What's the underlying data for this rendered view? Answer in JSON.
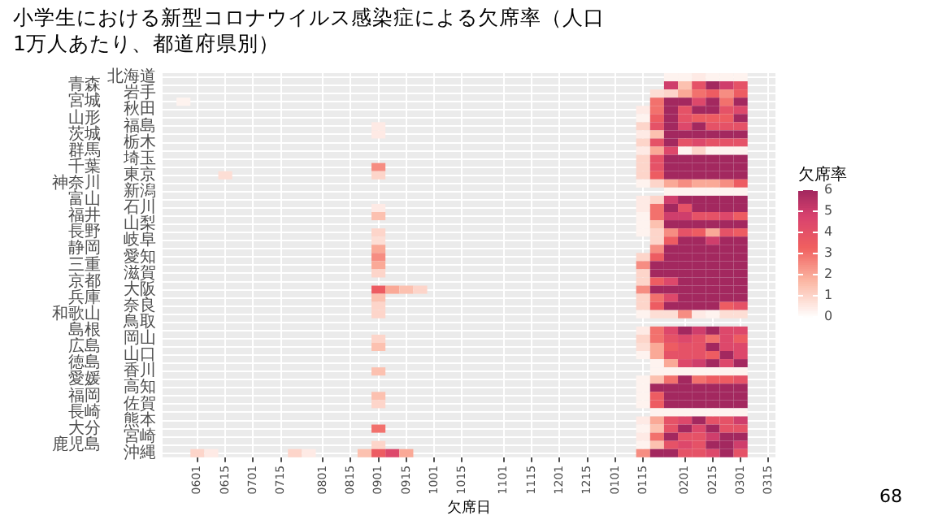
{
  "chart_data": {
    "type": "heatmap",
    "title": "小学生における新型コロナウイルス感染症による欠席率（人口1万人あたり、都道府県別）",
    "xlabel": "欠席日",
    "clabel": "欠席率",
    "clim": [
      0,
      6
    ],
    "cticks": [
      0,
      1,
      2,
      3,
      4,
      5,
      6
    ],
    "grid": true,
    "annotations": [
      "68"
    ],
    "categories": [
      null,
      null,
      "0601",
      null,
      "0615",
      null,
      "0701",
      null,
      "0715",
      null,
      null,
      "0801",
      null,
      "0815",
      null,
      "0901",
      null,
      "0915",
      null,
      "1001",
      null,
      "1015",
      null,
      null,
      "1101",
      null,
      "1115",
      null,
      "1201",
      null,
      "1215",
      null,
      "0101",
      null,
      "0115",
      null,
      null,
      "0201",
      null,
      "0215",
      null,
      "0301",
      null,
      "0315"
    ],
    "y_categories": [
      "北海道",
      "青森",
      "岩手",
      "宮城",
      "秋田",
      "山形",
      "福島",
      "茨城",
      "栃木",
      "群馬",
      "埼玉",
      "千葉",
      "東京",
      "神奈川",
      "新潟",
      "富山",
      "石川",
      "福井",
      "山梨",
      "長野",
      "岐阜",
      "静岡",
      "愛知",
      "三重",
      "滋賀",
      "京都",
      "大阪",
      "兵庫",
      "奈良",
      "和歌山",
      "鳥取",
      "島根",
      "岡山",
      "広島",
      "山口",
      "徳島",
      "香川",
      "愛媛",
      "高知",
      "福岡",
      "佐賀",
      "長崎",
      "熊本",
      "大分",
      "宮崎",
      "鹿児島",
      "沖縄"
    ],
    "cells": [
      [
        null,
        null,
        null,
        null,
        null,
        null,
        null,
        null,
        null,
        null,
        null,
        null,
        null,
        null,
        null,
        null,
        null,
        null,
        null,
        null,
        null,
        null,
        null,
        null,
        null,
        null,
        null,
        null,
        null,
        null,
        null,
        null,
        null,
        null,
        null,
        null,
        0.3,
        0.3,
        0.5,
        0.3,
        0.3,
        0.3,
        null,
        null
      ],
      [
        null,
        null,
        null,
        null,
        null,
        null,
        null,
        null,
        null,
        null,
        null,
        null,
        null,
        null,
        null,
        null,
        null,
        null,
        null,
        null,
        null,
        null,
        null,
        null,
        null,
        null,
        null,
        null,
        null,
        null,
        null,
        null,
        null,
        null,
        null,
        null,
        5,
        1.5,
        4,
        6,
        5,
        4,
        null,
        null
      ],
      [
        null,
        null,
        null,
        null,
        null,
        null,
        null,
        null,
        null,
        null,
        null,
        null,
        null,
        null,
        null,
        null,
        null,
        null,
        null,
        null,
        null,
        null,
        null,
        null,
        null,
        null,
        null,
        null,
        null,
        null,
        null,
        null,
        null,
        null,
        null,
        0.8,
        1,
        2,
        3,
        3.5,
        2.5,
        3.5,
        null,
        null
      ],
      [
        null,
        0.3,
        null,
        null,
        null,
        null,
        null,
        null,
        null,
        null,
        null,
        null,
        null,
        null,
        null,
        null,
        null,
        null,
        null,
        null,
        null,
        null,
        null,
        null,
        null,
        null,
        null,
        null,
        null,
        null,
        null,
        null,
        null,
        null,
        null,
        3,
        6,
        6,
        4.5,
        6,
        3,
        6,
        null,
        null
      ],
      [
        null,
        null,
        null,
        null,
        null,
        null,
        null,
        null,
        null,
        null,
        null,
        null,
        null,
        null,
        null,
        null,
        null,
        null,
        null,
        null,
        null,
        null,
        null,
        null,
        null,
        null,
        null,
        null,
        null,
        null,
        null,
        null,
        null,
        null,
        0.5,
        3,
        6,
        4,
        6,
        6,
        4,
        4.5,
        null,
        null
      ],
      [
        null,
        null,
        null,
        null,
        null,
        null,
        null,
        null,
        null,
        null,
        null,
        null,
        null,
        null,
        null,
        null,
        null,
        null,
        null,
        null,
        null,
        null,
        null,
        null,
        null,
        null,
        null,
        null,
        null,
        null,
        null,
        null,
        null,
        null,
        0.3,
        3.5,
        6,
        4,
        3.5,
        3.5,
        3.5,
        6,
        null,
        null
      ],
      [
        null,
        null,
        null,
        null,
        null,
        null,
        null,
        null,
        null,
        null,
        null,
        null,
        null,
        null,
        null,
        0.5,
        null,
        null,
        null,
        null,
        null,
        null,
        null,
        null,
        null,
        null,
        null,
        null,
        null,
        null,
        null,
        null,
        null,
        null,
        1,
        4,
        6,
        4.5,
        6,
        4,
        4,
        4,
        null,
        null
      ],
      [
        null,
        null,
        null,
        null,
        null,
        null,
        null,
        null,
        null,
        null,
        null,
        null,
        null,
        null,
        null,
        0.5,
        null,
        null,
        null,
        null,
        null,
        null,
        null,
        null,
        null,
        null,
        null,
        null,
        null,
        null,
        null,
        null,
        null,
        null,
        0.5,
        1.5,
        6,
        6,
        6,
        6,
        6,
        6,
        null,
        null
      ],
      [
        null,
        null,
        null,
        null,
        null,
        null,
        null,
        null,
        null,
        null,
        null,
        null,
        null,
        null,
        null,
        null,
        null,
        null,
        null,
        null,
        null,
        null,
        null,
        null,
        null,
        null,
        null,
        null,
        null,
        null,
        null,
        null,
        null,
        null,
        1,
        4,
        6,
        4,
        4.5,
        4,
        4,
        4,
        null,
        null
      ],
      [
        null,
        null,
        null,
        null,
        null,
        null,
        null,
        null,
        null,
        null,
        null,
        null,
        null,
        null,
        null,
        null,
        null,
        null,
        null,
        null,
        null,
        null,
        null,
        null,
        null,
        null,
        null,
        null,
        null,
        null,
        null,
        null,
        null,
        null,
        0.5,
        2,
        4.5,
        0.3,
        1,
        0.3,
        0.3,
        0.3,
        null,
        null
      ],
      [
        null,
        null,
        null,
        null,
        null,
        null,
        null,
        null,
        null,
        null,
        null,
        null,
        null,
        null,
        null,
        null,
        null,
        null,
        null,
        null,
        null,
        null,
        null,
        null,
        null,
        null,
        null,
        null,
        null,
        null,
        null,
        null,
        null,
        null,
        1,
        4,
        6,
        6,
        6,
        6,
        6,
        6,
        null,
        null
      ],
      [
        null,
        null,
        null,
        null,
        null,
        null,
        null,
        null,
        null,
        null,
        null,
        null,
        null,
        null,
        null,
        2.5,
        null,
        null,
        null,
        null,
        null,
        null,
        null,
        null,
        null,
        null,
        null,
        null,
        null,
        null,
        null,
        null,
        null,
        null,
        1,
        4,
        6,
        6,
        6,
        6,
        6,
        6,
        null,
        null
      ],
      [
        null,
        null,
        null,
        null,
        0.8,
        null,
        null,
        null,
        null,
        null,
        null,
        null,
        null,
        null,
        null,
        1,
        null,
        null,
        null,
        null,
        null,
        null,
        null,
        null,
        null,
        null,
        null,
        null,
        null,
        null,
        null,
        null,
        null,
        null,
        1,
        3.5,
        6,
        6,
        6,
        6,
        6,
        6,
        null,
        null
      ],
      [
        null,
        null,
        null,
        null,
        null,
        null,
        null,
        null,
        null,
        null,
        null,
        null,
        null,
        null,
        null,
        null,
        null,
        null,
        null,
        null,
        null,
        null,
        null,
        null,
        null,
        null,
        null,
        null,
        null,
        null,
        null,
        null,
        null,
        null,
        0.3,
        1,
        2,
        2.5,
        2,
        2,
        2.5,
        3.5,
        null,
        null
      ],
      [
        null,
        null,
        null,
        null,
        null,
        null,
        null,
        null,
        null,
        null,
        null,
        null,
        null,
        null,
        null,
        null,
        null,
        null,
        null,
        null,
        null,
        null,
        null,
        null,
        null,
        null,
        null,
        null,
        null,
        null,
        null,
        null,
        null,
        null,
        null,
        null,
        0.3,
        0.3,
        0.3,
        0.3,
        0.3,
        0.3,
        null,
        null
      ],
      [
        null,
        null,
        null,
        null,
        null,
        null,
        null,
        null,
        null,
        null,
        null,
        null,
        null,
        null,
        null,
        null,
        null,
        null,
        null,
        null,
        null,
        null,
        null,
        null,
        null,
        null,
        null,
        null,
        null,
        null,
        null,
        null,
        null,
        null,
        0.5,
        1,
        5,
        6,
        6,
        6,
        6,
        6,
        null,
        null
      ],
      [
        null,
        null,
        null,
        null,
        null,
        null,
        null,
        null,
        null,
        null,
        null,
        null,
        null,
        null,
        null,
        0.5,
        null,
        null,
        null,
        null,
        null,
        null,
        null,
        null,
        null,
        null,
        null,
        null,
        null,
        null,
        null,
        null,
        null,
        null,
        0.5,
        3,
        6,
        4,
        6,
        6,
        6,
        6,
        null,
        null
      ],
      [
        null,
        null,
        null,
        null,
        null,
        null,
        null,
        null,
        null,
        null,
        null,
        null,
        null,
        null,
        null,
        1.5,
        null,
        null,
        null,
        null,
        null,
        null,
        null,
        null,
        null,
        null,
        null,
        null,
        null,
        null,
        null,
        null,
        null,
        null,
        0.3,
        3,
        5,
        5,
        4,
        4,
        4.5,
        3.5,
        null,
        null
      ],
      [
        null,
        null,
        null,
        null,
        null,
        null,
        null,
        null,
        null,
        null,
        null,
        null,
        null,
        null,
        null,
        null,
        null,
        null,
        null,
        null,
        null,
        null,
        null,
        null,
        null,
        null,
        null,
        null,
        null,
        null,
        null,
        null,
        null,
        null,
        0.3,
        1.5,
        6,
        6,
        6,
        6,
        6,
        6,
        null,
        null
      ],
      [
        null,
        null,
        null,
        null,
        null,
        null,
        null,
        null,
        null,
        null,
        null,
        null,
        null,
        null,
        null,
        1,
        null,
        null,
        null,
        null,
        null,
        null,
        null,
        null,
        null,
        null,
        null,
        null,
        null,
        null,
        null,
        null,
        null,
        null,
        0.3,
        1,
        2.5,
        4,
        3.5,
        2,
        4,
        3.5,
        null,
        null
      ],
      [
        null,
        null,
        null,
        null,
        null,
        null,
        null,
        null,
        null,
        null,
        null,
        null,
        null,
        null,
        null,
        0.8,
        null,
        null,
        null,
        null,
        null,
        null,
        null,
        null,
        null,
        null,
        null,
        null,
        null,
        null,
        null,
        null,
        null,
        null,
        null,
        1,
        3.5,
        6,
        6,
        5,
        6,
        6,
        null,
        null
      ],
      [
        null,
        null,
        null,
        null,
        null,
        null,
        null,
        null,
        null,
        null,
        null,
        null,
        null,
        null,
        null,
        2,
        null,
        null,
        null,
        null,
        null,
        null,
        null,
        null,
        null,
        null,
        null,
        null,
        null,
        null,
        null,
        null,
        null,
        null,
        null,
        2.5,
        6,
        6,
        6,
        6,
        6,
        6,
        null,
        null
      ],
      [
        null,
        null,
        null,
        null,
        null,
        null,
        null,
        null,
        null,
        null,
        null,
        null,
        null,
        null,
        null,
        2.5,
        null,
        null,
        null,
        null,
        null,
        null,
        null,
        null,
        null,
        null,
        null,
        null,
        null,
        null,
        null,
        null,
        null,
        null,
        1,
        3.5,
        6,
        6,
        6,
        6,
        6,
        6,
        null,
        null
      ],
      [
        null,
        null,
        null,
        null,
        null,
        null,
        null,
        null,
        null,
        null,
        null,
        null,
        null,
        null,
        null,
        2,
        null,
        null,
        null,
        null,
        null,
        null,
        null,
        null,
        null,
        null,
        null,
        null,
        null,
        null,
        null,
        null,
        null,
        null,
        2.5,
        6,
        6,
        6,
        6,
        6,
        6,
        6,
        null,
        null
      ],
      [
        null,
        null,
        null,
        null,
        null,
        null,
        null,
        null,
        null,
        null,
        null,
        null,
        null,
        null,
        null,
        1,
        null,
        null,
        null,
        null,
        null,
        null,
        null,
        null,
        null,
        null,
        null,
        null,
        null,
        null,
        null,
        null,
        null,
        null,
        1,
        6,
        6,
        6,
        6,
        6,
        6,
        6,
        null,
        null
      ],
      [
        null,
        null,
        null,
        null,
        null,
        null,
        null,
        null,
        null,
        null,
        null,
        null,
        null,
        null,
        null,
        null,
        null,
        null,
        null,
        null,
        null,
        null,
        null,
        null,
        null,
        null,
        null,
        null,
        null,
        null,
        null,
        null,
        null,
        null,
        1,
        3.5,
        4.5,
        6,
        6,
        6,
        6,
        6,
        null,
        null
      ],
      [
        null,
        null,
        null,
        null,
        null,
        null,
        null,
        null,
        null,
        null,
        null,
        null,
        null,
        null,
        null,
        3.5,
        2,
        1.5,
        1,
        null,
        null,
        null,
        null,
        null,
        null,
        null,
        null,
        null,
        null,
        null,
        null,
        null,
        null,
        null,
        2.5,
        6,
        6,
        6,
        6,
        6,
        6,
        6,
        null,
        null
      ],
      [
        null,
        null,
        null,
        null,
        null,
        null,
        null,
        null,
        null,
        null,
        null,
        null,
        null,
        null,
        null,
        1.5,
        null,
        null,
        null,
        null,
        null,
        null,
        null,
        null,
        null,
        null,
        null,
        null,
        null,
        null,
        null,
        null,
        null,
        null,
        1,
        3,
        4.5,
        6,
        6,
        6,
        6,
        6,
        null,
        null
      ],
      [
        null,
        null,
        null,
        null,
        null,
        null,
        null,
        null,
        null,
        null,
        null,
        null,
        null,
        null,
        null,
        1,
        null,
        null,
        null,
        null,
        null,
        null,
        null,
        null,
        null,
        null,
        null,
        null,
        null,
        null,
        null,
        null,
        null,
        null,
        1,
        3.5,
        6,
        6,
        6,
        6,
        3.5,
        4,
        null,
        null
      ],
      [
        null,
        null,
        null,
        null,
        null,
        null,
        null,
        null,
        null,
        null,
        null,
        null,
        null,
        null,
        null,
        1,
        null,
        null,
        null,
        null,
        null,
        null,
        null,
        null,
        null,
        null,
        null,
        null,
        null,
        null,
        null,
        null,
        null,
        null,
        0.3,
        0.8,
        0.8,
        2.5,
        0.5,
        0.3,
        0.8,
        0.8,
        null,
        null
      ],
      [
        null,
        null,
        null,
        null,
        null,
        null,
        null,
        null,
        null,
        null,
        null,
        null,
        null,
        null,
        null,
        null,
        null,
        null,
        null,
        null,
        null,
        null,
        null,
        null,
        null,
        null,
        null,
        null,
        null,
        null,
        null,
        null,
        null,
        null,
        null,
        null,
        null,
        null,
        null,
        null,
        null,
        null,
        null,
        null
      ],
      [
        null,
        null,
        null,
        null,
        null,
        null,
        null,
        null,
        null,
        null,
        null,
        null,
        null,
        null,
        null,
        null,
        null,
        null,
        null,
        null,
        null,
        null,
        null,
        null,
        null,
        null,
        null,
        null,
        null,
        null,
        null,
        null,
        null,
        null,
        0.5,
        3,
        4.5,
        6,
        5,
        6,
        4.5,
        4.5,
        null,
        null
      ],
      [
        null,
        null,
        null,
        null,
        null,
        null,
        null,
        null,
        null,
        null,
        null,
        null,
        null,
        null,
        null,
        1,
        null,
        null,
        null,
        null,
        null,
        null,
        null,
        null,
        null,
        null,
        null,
        null,
        null,
        null,
        null,
        null,
        null,
        null,
        1,
        3,
        4,
        4.5,
        4,
        3,
        4.5,
        3.5,
        null,
        null
      ],
      [
        null,
        null,
        null,
        null,
        null,
        null,
        null,
        null,
        null,
        null,
        null,
        null,
        null,
        null,
        null,
        1.5,
        null,
        null,
        null,
        null,
        null,
        null,
        null,
        null,
        null,
        null,
        null,
        null,
        null,
        null,
        null,
        null,
        null,
        null,
        0.8,
        2,
        3.5,
        4,
        4,
        6,
        4.5,
        4.5,
        null,
        null
      ],
      [
        null,
        null,
        null,
        null,
        null,
        null,
        null,
        null,
        null,
        null,
        null,
        null,
        null,
        null,
        null,
        null,
        null,
        null,
        null,
        null,
        null,
        null,
        null,
        null,
        null,
        null,
        null,
        null,
        null,
        null,
        null,
        null,
        null,
        null,
        0.3,
        2,
        4,
        4,
        4,
        3.5,
        6,
        4.5,
        null,
        null
      ],
      [
        null,
        null,
        null,
        null,
        null,
        null,
        null,
        null,
        null,
        null,
        null,
        null,
        null,
        null,
        null,
        null,
        null,
        null,
        null,
        null,
        null,
        null,
        null,
        null,
        null,
        null,
        null,
        null,
        null,
        null,
        null,
        null,
        null,
        null,
        null,
        0.3,
        2,
        4.5,
        5,
        6,
        4.5,
        6,
        null,
        null
      ],
      [
        null,
        null,
        null,
        null,
        null,
        null,
        null,
        null,
        null,
        null,
        null,
        null,
        null,
        null,
        null,
        1.5,
        null,
        null,
        null,
        null,
        null,
        null,
        null,
        null,
        null,
        null,
        null,
        null,
        null,
        null,
        null,
        null,
        null,
        null,
        null,
        0.3,
        0.3,
        0.3,
        0.3,
        0.3,
        0.3,
        0.3,
        null,
        null
      ],
      [
        null,
        null,
        null,
        null,
        null,
        null,
        null,
        null,
        null,
        null,
        null,
        null,
        null,
        null,
        null,
        null,
        null,
        null,
        null,
        null,
        null,
        null,
        null,
        null,
        null,
        null,
        null,
        null,
        null,
        null,
        null,
        null,
        null,
        null,
        0.3,
        1.5,
        3,
        6,
        3,
        3.5,
        3.5,
        4,
        null,
        null
      ],
      [
        null,
        null,
        null,
        null,
        null,
        null,
        null,
        null,
        null,
        null,
        null,
        null,
        null,
        null,
        null,
        null,
        null,
        null,
        null,
        null,
        null,
        null,
        null,
        null,
        null,
        null,
        null,
        null,
        null,
        null,
        null,
        null,
        null,
        null,
        0.3,
        6,
        6,
        6,
        6,
        6,
        6,
        6,
        null,
        null
      ],
      [
        null,
        null,
        null,
        null,
        null,
        null,
        null,
        null,
        null,
        null,
        null,
        null,
        null,
        null,
        null,
        1.5,
        null,
        null,
        null,
        null,
        null,
        null,
        null,
        null,
        null,
        null,
        null,
        null,
        null,
        null,
        null,
        null,
        null,
        null,
        0.3,
        3.5,
        6,
        6,
        6,
        6,
        6,
        6,
        null,
        null
      ],
      [
        null,
        null,
        null,
        null,
        null,
        null,
        null,
        null,
        null,
        null,
        null,
        null,
        null,
        null,
        null,
        1,
        null,
        null,
        null,
        null,
        null,
        null,
        null,
        null,
        null,
        null,
        null,
        null,
        null,
        null,
        null,
        null,
        null,
        null,
        0.3,
        3.5,
        6,
        6,
        6,
        6,
        6,
        6,
        null,
        null
      ],
      [
        null,
        null,
        null,
        null,
        null,
        null,
        null,
        null,
        null,
        null,
        null,
        null,
        null,
        null,
        null,
        null,
        null,
        null,
        null,
        null,
        null,
        null,
        null,
        null,
        null,
        null,
        null,
        null,
        null,
        null,
        null,
        null,
        null,
        null,
        null,
        0.3,
        0.3,
        0.3,
        0.3,
        0.3,
        0.3,
        0.3,
        null,
        null
      ],
      [
        null,
        null,
        null,
        null,
        null,
        null,
        null,
        null,
        null,
        null,
        null,
        null,
        null,
        null,
        null,
        null,
        null,
        null,
        null,
        null,
        null,
        null,
        null,
        null,
        null,
        null,
        null,
        null,
        null,
        null,
        null,
        null,
        null,
        null,
        0.5,
        2,
        4,
        4.5,
        6,
        4,
        4,
        5,
        null,
        null
      ],
      [
        null,
        null,
        null,
        null,
        null,
        null,
        null,
        null,
        null,
        null,
        null,
        null,
        null,
        null,
        null,
        3,
        null,
        null,
        null,
        null,
        null,
        null,
        null,
        null,
        null,
        null,
        null,
        null,
        null,
        null,
        null,
        null,
        null,
        null,
        0.3,
        1.5,
        4,
        6,
        4.5,
        6,
        4,
        4,
        null,
        null
      ],
      [
        null,
        null,
        null,
        null,
        null,
        null,
        null,
        null,
        null,
        null,
        null,
        null,
        null,
        null,
        null,
        null,
        null,
        null,
        null,
        null,
        null,
        null,
        null,
        null,
        null,
        null,
        null,
        null,
        null,
        null,
        null,
        null,
        null,
        null,
        0.5,
        3,
        6,
        4,
        4,
        5,
        6,
        6,
        null,
        null
      ],
      [
        null,
        null,
        null,
        null,
        null,
        null,
        null,
        null,
        null,
        null,
        null,
        null,
        null,
        null,
        null,
        1,
        null,
        null,
        null,
        null,
        null,
        null,
        null,
        null,
        null,
        null,
        null,
        null,
        null,
        null,
        null,
        null,
        null,
        null,
        0.3,
        1.5,
        4,
        4.5,
        4,
        6,
        6,
        5,
        null,
        null
      ],
      [
        null,
        null,
        1,
        0.5,
        null,
        null,
        null,
        null,
        null,
        1,
        0.5,
        null,
        null,
        null,
        1.5,
        3.5,
        4.5,
        2,
        null,
        null,
        null,
        null,
        null,
        null,
        null,
        null,
        null,
        null,
        null,
        null,
        null,
        null,
        null,
        null,
        2.5,
        6,
        6,
        4,
        4,
        4.5,
        6,
        4,
        null,
        null
      ]
    ]
  }
}
